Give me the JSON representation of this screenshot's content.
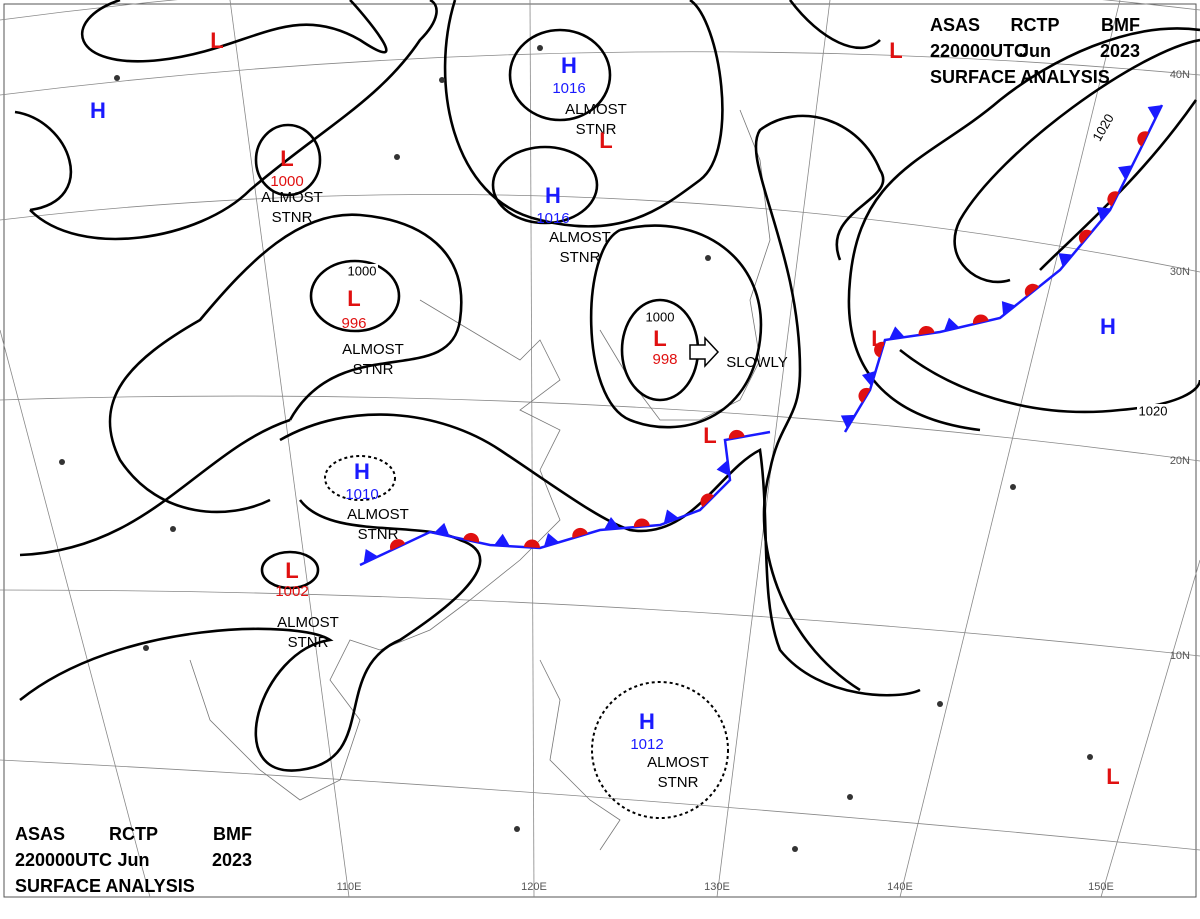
{
  "header": {
    "lines": [
      [
        "ASAS",
        "RCTP",
        "BMF"
      ],
      [
        "220000UTC",
        "Jun",
        "2023"
      ],
      [
        "SURFACE ANALYSIS"
      ]
    ]
  },
  "systems": [
    {
      "type": "L"
    },
    {
      "type": "H"
    },
    {
      "type": "L",
      "pressure": 1000,
      "motion": [
        "ALMOST",
        "STNR"
      ]
    },
    {
      "type": "L",
      "pressure": 996,
      "motion": [
        "ALMOST",
        "STNR"
      ]
    },
    {
      "type": "H",
      "pressure": 1016,
      "motion": [
        "ALMOST",
        "STNR"
      ]
    },
    {
      "type": "L"
    },
    {
      "type": "H",
      "pressure": 1016,
      "motion": [
        "ALMOST",
        "STNR"
      ]
    },
    {
      "type": "L",
      "pressure": 998,
      "motion": [
        "SLOWLY"
      ]
    },
    {
      "type": "H",
      "pressure": 1010,
      "motion": [
        "ALMOST",
        "STNR"
      ]
    },
    {
      "type": "L",
      "pressure": 1002,
      "motion": [
        "ALMOST",
        "STNR"
      ]
    },
    {
      "type": "H",
      "pressure": 1012,
      "motion": [
        "ALMOST",
        "STNR"
      ]
    },
    {
      "type": "L"
    },
    {
      "type": "H"
    },
    {
      "type": "L"
    },
    {
      "type": "L"
    },
    {
      "type": "L"
    }
  ],
  "isobar_labels": [
    1000,
    1000,
    1020,
    1020
  ],
  "latitude_labels": [
    "40N",
    "30N",
    "20N",
    "10N"
  ],
  "longitude_labels": [
    "110E",
    "120E",
    "130E",
    "140E",
    "150E"
  ]
}
